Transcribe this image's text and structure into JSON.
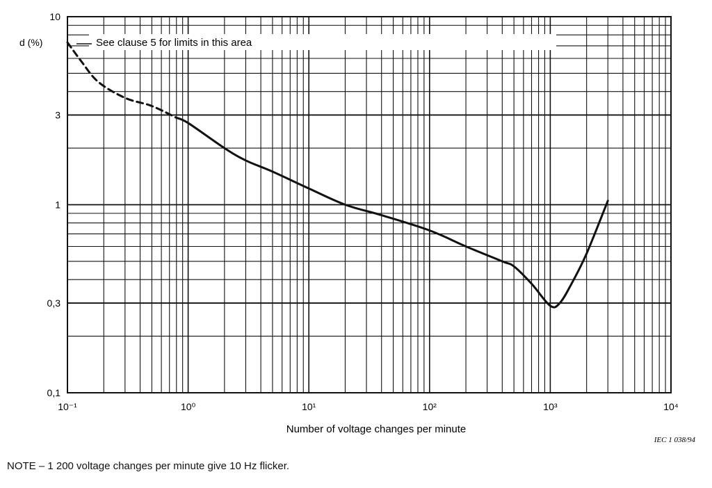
{
  "chart_data": {
    "type": "line",
    "x_scale": "log",
    "y_scale": "log",
    "xlim": [
      0.1,
      10000
    ],
    "ylim": [
      0.1,
      10
    ],
    "xlabel": "Number of voltage changes per minute",
    "ylabel": "d (%)",
    "x_ticks": [
      "10⁻¹",
      "10⁰",
      "10¹",
      "10²",
      "10³",
      "10⁴"
    ],
    "y_ticks": [
      "10",
      "3",
      "1",
      "0,3",
      "0,1"
    ],
    "y_tick_values": [
      10,
      3,
      1,
      0.3,
      0.1
    ],
    "grid": true,
    "annotation": "See clause 5 for limits in this area",
    "credit": "IEC 1 038/94",
    "series": [
      {
        "style": "dashed",
        "points": [
          [
            0.1,
            7.3
          ],
          [
            0.13,
            5.8
          ],
          [
            0.18,
            4.5
          ],
          [
            0.3,
            3.7
          ],
          [
            0.5,
            3.35
          ],
          [
            0.8,
            2.9
          ]
        ]
      },
      {
        "style": "solid",
        "points": [
          [
            0.8,
            2.9
          ],
          [
            1,
            2.72
          ],
          [
            2,
            2.0
          ],
          [
            3,
            1.72
          ],
          [
            5,
            1.5
          ],
          [
            10,
            1.22
          ],
          [
            20,
            1.0
          ],
          [
            40,
            0.88
          ],
          [
            100,
            0.73
          ],
          [
            200,
            0.6
          ],
          [
            400,
            0.5
          ],
          [
            500,
            0.47
          ],
          [
            700,
            0.38
          ],
          [
            1000,
            0.29
          ],
          [
            1200,
            0.3
          ],
          [
            1500,
            0.38
          ],
          [
            2000,
            0.55
          ],
          [
            3000,
            1.05
          ]
        ]
      }
    ]
  },
  "note": "NOTE  –  1 200 voltage changes per minute give 10 Hz flicker."
}
